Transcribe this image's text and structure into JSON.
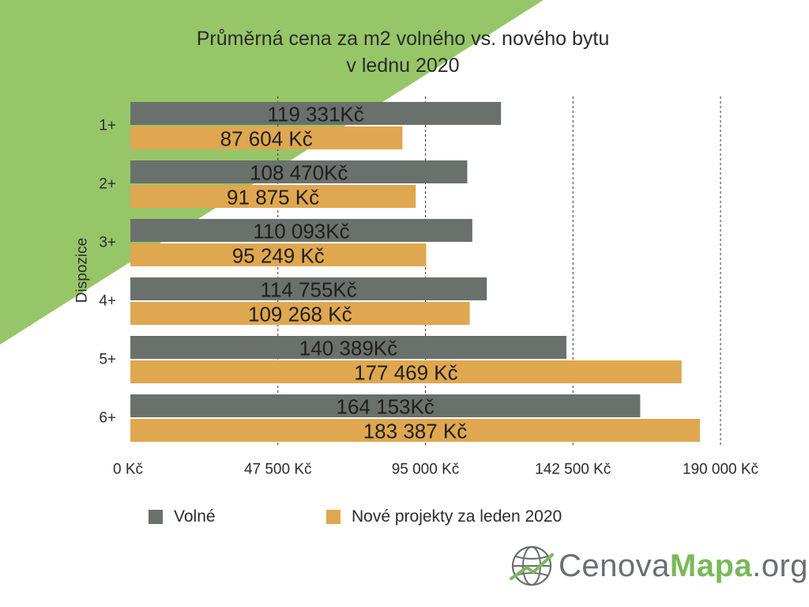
{
  "colors": {
    "background_triangle": "#97c669",
    "series_volne": "#6a716c",
    "series_nove": "#dfa74f",
    "gridline": "#333333",
    "logo_gray": "#6b6e72",
    "logo_green": "#7bb85a"
  },
  "chart_data": {
    "type": "bar",
    "orientation": "horizontal",
    "title": "Průměrná cena za m2 volného vs. nového bytu v lednu 2020",
    "title_lines": [
      "Průměrná cena za m2 volného vs. nového bytu",
      "v lednu 2020"
    ],
    "ylabel": "Dispozice",
    "xlabel": "",
    "categories": [
      "1+",
      "2+",
      "3+",
      "4+",
      "5+",
      "6+"
    ],
    "xlim": [
      0,
      190000
    ],
    "x_ticks": [
      0,
      47500,
      95000,
      142500,
      190000
    ],
    "x_tick_labels": [
      "0 Kč",
      "47 500 Kč",
      "95 000 Kč",
      "142 500 Kč",
      "190 000 Kč"
    ],
    "grid": "vertical dashed",
    "legend_position": "bottom",
    "series": [
      {
        "name": "Volné",
        "color": "#6a716c",
        "values": [
          119331,
          108470,
          110093,
          114755,
          140389,
          164153
        ],
        "labels": [
          "119 331Kč",
          "108 470Kč",
          "110 093Kč",
          "114 755Kč",
          "140 389Kč",
          "164 153Kč"
        ]
      },
      {
        "name": "Nové projekty za leden 2020",
        "color": "#dfa74f",
        "values": [
          87604,
          91875,
          95249,
          109268,
          177469,
          183387
        ],
        "labels": [
          "87 604 Kč",
          "91 875 Kč",
          "95 249 Kč",
          "109 268 Kč",
          "177 469 Kč",
          "183 387 Kč"
        ]
      }
    ]
  },
  "logo": {
    "part_a": "Cenova",
    "part_b": "Mapa",
    "part_c": ".org",
    "icon": "globe-icon"
  }
}
